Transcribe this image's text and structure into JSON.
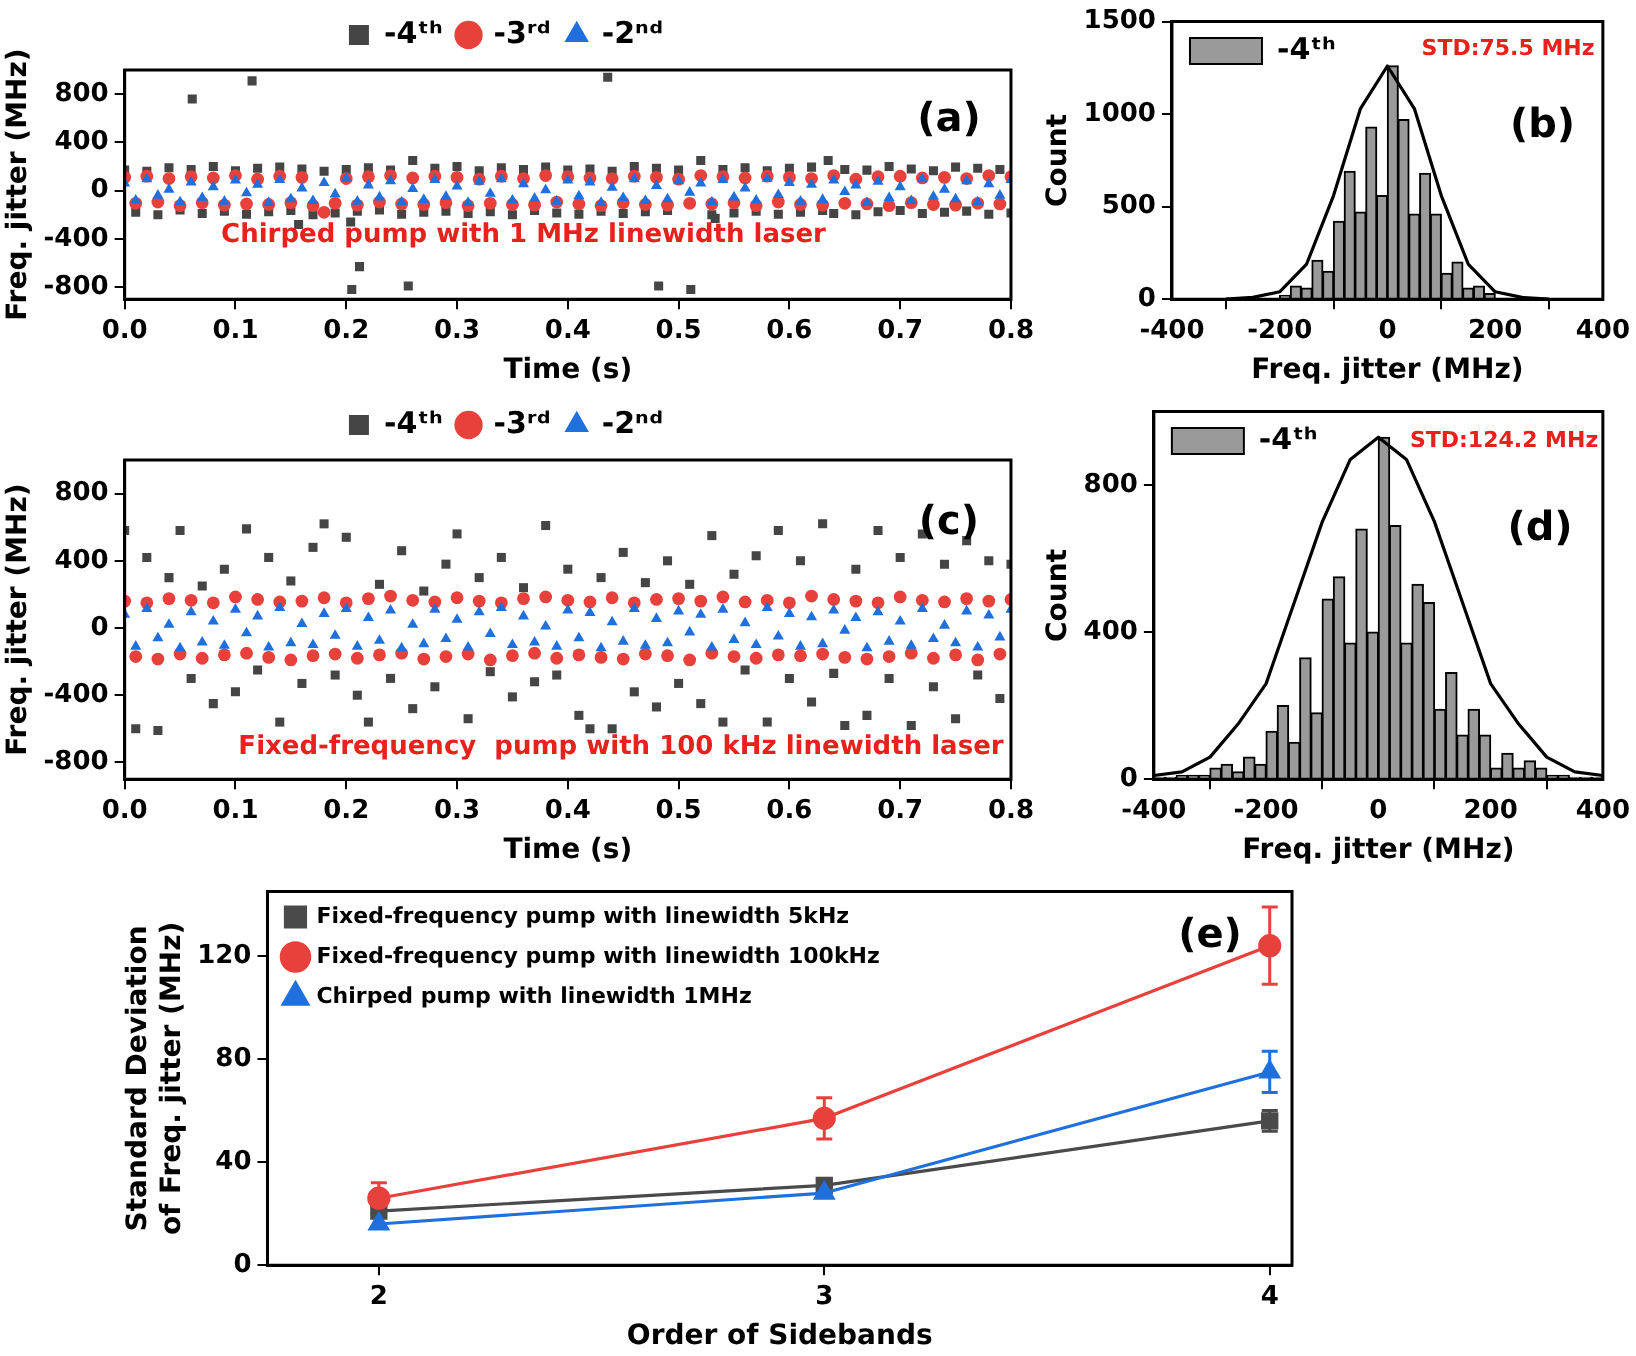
{
  "chart_data": [
    {
      "type": "scatter",
      "xlabel": "Time (s)",
      "ylabel": "Freq. jitter (MHz)",
      "legend": "top",
      "annotations": [
        "(a)",
        "Chirped pump with 1 MHz linewidth laser"
      ],
      "xlim": [
        0,
        0.8
      ],
      "xticks": [
        {
          "value": 0,
          "label": "0.0"
        },
        0.1,
        0.2,
        0.3,
        0.4,
        0.5,
        0.6,
        0.7,
        0.8
      ],
      "ylim": [
        -900,
        1000
      ],
      "yticks": [
        -800,
        -400,
        0,
        400,
        800
      ],
      "x": [
        0,
        0.01,
        0.02,
        0.03,
        0.04,
        0.05,
        0.06,
        0.07,
        0.08,
        0.09,
        0.1,
        0.11,
        0.12,
        0.13,
        0.14,
        0.15,
        0.16,
        0.17,
        0.18,
        0.19,
        0.2,
        0.21,
        0.22,
        0.23,
        0.24,
        0.25,
        0.26,
        0.27,
        0.28,
        0.29,
        0.3,
        0.31,
        0.32,
        0.33,
        0.34,
        0.35,
        0.36,
        0.37,
        0.38,
        0.39,
        0.4,
        0.41,
        0.42,
        0.43,
        0.44,
        0.45,
        0.46,
        0.47,
        0.48,
        0.49,
        0.5,
        0.51,
        0.52,
        0.53,
        0.54,
        0.55,
        0.56,
        0.57,
        0.58,
        0.59,
        0.6,
        0.61,
        0.62,
        0.63,
        0.64,
        0.65,
        0.66,
        0.67,
        0.68,
        0.69,
        0.7,
        0.71,
        0.72,
        0.73,
        0.74,
        0.75,
        0.76,
        0.77,
        0.78,
        0.79,
        0.8
      ],
      "series": [
        {
          "name": "-4ᵗʰ",
          "color": "#454545",
          "marker": "square",
          "x": [
            0,
            0.01,
            0.02,
            0.03,
            0.04,
            0.05,
            0.06,
            0.061,
            0.07,
            0.08,
            0.09,
            0.1,
            0.11,
            0.115,
            0.12,
            0.13,
            0.14,
            0.15,
            0.157,
            0.16,
            0.17,
            0.18,
            0.19,
            0.2,
            0.204,
            0.205,
            0.21,
            0.212,
            0.22,
            0.23,
            0.24,
            0.25,
            0.256,
            0.26,
            0.27,
            0.28,
            0.29,
            0.3,
            0.31,
            0.32,
            0.33,
            0.34,
            0.35,
            0.36,
            0.37,
            0.38,
            0.39,
            0.4,
            0.41,
            0.42,
            0.43,
            0.436,
            0.44,
            0.45,
            0.46,
            0.47,
            0.48,
            0.482,
            0.49,
            0.5,
            0.511,
            0.52,
            0.53,
            0.533,
            0.54,
            0.55,
            0.56,
            0.57,
            0.58,
            0.59,
            0.6,
            0.61,
            0.62,
            0.63,
            0.635,
            0.64,
            0.65,
            0.66,
            0.67,
            0.68,
            0.69,
            0.7,
            0.71,
            0.72,
            0.73,
            0.74,
            0.75,
            0.76,
            0.77,
            0.78,
            0.79,
            0.8
          ],
          "values": [
            170,
            -180,
            160,
            -200,
            190,
            -160,
            175,
            760,
            -190,
            200,
            -170,
            165,
            -195,
            910,
            185,
            -175,
            195,
            -165,
            -280,
            180,
            -200,
            160,
            -185,
            175,
            -260,
            -820,
            -170,
            -630,
            190,
            -160,
            170,
            -195,
            -790,
            250,
            -180,
            185,
            -170,
            200,
            -190,
            165,
            -175,
            190,
            -200,
            175,
            -165,
            195,
            -185,
            170,
            -195,
            180,
            -170,
            940,
            160,
            -190,
            200,
            -175,
            185,
            -790,
            -165,
            170,
            -820,
            250,
            -200,
            -230,
            175,
            -185,
            190,
            -170,
            165,
            -195,
            185,
            -180,
            195,
            -165,
            250,
            -190,
            175,
            -200,
            170,
            -175,
            200,
            -165,
            180,
            -190,
            165,
            -180,
            195,
            -170,
            185,
            -195,
            175,
            -185
          ]
        },
        {
          "name": "-3ʳᵈ",
          "color": "#e8413c",
          "marker": "circle",
          "values": [
            110,
            -105,
            120,
            -95,
            100,
            -125,
            115,
            -100,
            105,
            -120,
            125,
            -110,
            95,
            -115,
            120,
            -100,
            110,
            -125,
            -180,
            -105,
            100,
            -120,
            115,
            -95,
            125,
            -110,
            105,
            -115,
            120,
            -100,
            110,
            -125,
            95,
            -105,
            120,
            -115,
            100,
            -120,
            125,
            -95,
            115,
            -110,
            105,
            -125,
            100,
            -100,
            120,
            -115,
            110,
            -120,
            95,
            -105,
            125,
            -110,
            115,
            -100,
            105,
            -125,
            120,
            -95,
            110,
            -115,
            100,
            -120,
            125,
            -105,
            95,
            -110,
            115,
            -125,
            120,
            -100,
            105,
            -115,
            110,
            -120,
            100,
            -105,
            125,
            -110,
            115
          ]
        },
        {
          "name": "-2ⁿᵈ",
          "color": "#1f6fdc",
          "marker": "triangle",
          "values": [
            60,
            -80,
            95,
            -40,
            10,
            -95,
            70,
            -60,
            30,
            -90,
            85,
            -20,
            50,
            -100,
            90,
            -70,
            20,
            -85,
            65,
            -30,
            100,
            -90,
            45,
            -55,
            80,
            -95,
            15,
            -75,
            90,
            -50,
            35,
            -100,
            75,
            -25,
            95,
            -80,
            55,
            -65,
            5,
            -90,
            85,
            -45,
            70,
            -100,
            25,
            -60,
            95,
            -85,
            40,
            -70,
            80,
            -15,
            60,
            -95,
            90,
            -55,
            20,
            -80,
            100,
            -35,
            65,
            -90,
            50,
            -75,
            85,
            -10,
            45,
            -100,
            75,
            -60,
            30,
            -85,
            95,
            -50,
            10,
            -70,
            80,
            -95,
            55,
            -40,
            90
          ]
        }
      ]
    },
    {
      "type": "histogram",
      "xlabel": "Freq. jitter (MHz)",
      "ylabel": "Count",
      "legend": "top left",
      "annotations": [
        "STD:75.5 MHz",
        "(b)"
      ],
      "xlim": [
        -400,
        400
      ],
      "xticks": [
        -400,
        -200,
        0,
        200,
        400
      ],
      "ylim": [
        0,
        1500
      ],
      "yticks": [
        0,
        500,
        1000,
        1500
      ],
      "bins": [
        -200,
        -180,
        -160,
        -140,
        -120,
        -100,
        -80,
        -60,
        -40,
        -20,
        0,
        20,
        40,
        60,
        80,
        100,
        120,
        140,
        160,
        180,
        200
      ],
      "series": [
        {
          "name": "-4ᵗʰ",
          "color": "#9a9a9a",
          "values": [
            20,
            70,
            60,
            210,
            150,
            420,
            690,
            470,
            930,
            560,
            1260,
            970,
            460,
            680,
            460,
            140,
            200,
            60,
            70,
            30
          ]
        },
        {
          "type": "line",
          "color": "#000000",
          "x": [
            -300,
            -250,
            -200,
            -150,
            -100,
            -50,
            0,
            50,
            100,
            150,
            200,
            250,
            300
          ],
          "values": [
            0,
            10,
            40,
            190,
            560,
            1030,
            1260,
            1030,
            560,
            190,
            40,
            10,
            0
          ]
        }
      ]
    },
    {
      "type": "scatter",
      "xlabel": "Time (s)",
      "ylabel": "Freq. jitter (MHz)",
      "legend": "top",
      "annotations": [
        "(c)",
        "Fixed-frequency  pump with 100 kHz linewidth laser"
      ],
      "xlim": [
        0,
        0.8
      ],
      "xticks": [
        {
          "value": 0,
          "label": "0.0"
        },
        0.1,
        0.2,
        0.3,
        0.4,
        0.5,
        0.6,
        0.7,
        0.8
      ],
      "ylim": [
        -900,
        1000
      ],
      "yticks": [
        -800,
        -400,
        0,
        400,
        800
      ],
      "x": [
        0,
        0.01,
        0.02,
        0.03,
        0.04,
        0.05,
        0.06,
        0.07,
        0.08,
        0.09,
        0.1,
        0.11,
        0.12,
        0.13,
        0.14,
        0.15,
        0.16,
        0.17,
        0.18,
        0.19,
        0.2,
        0.21,
        0.22,
        0.23,
        0.24,
        0.25,
        0.26,
        0.27,
        0.28,
        0.29,
        0.3,
        0.31,
        0.32,
        0.33,
        0.34,
        0.35,
        0.36,
        0.37,
        0.38,
        0.39,
        0.4,
        0.41,
        0.42,
        0.43,
        0.44,
        0.45,
        0.46,
        0.47,
        0.48,
        0.49,
        0.5,
        0.51,
        0.52,
        0.53,
        0.54,
        0.55,
        0.56,
        0.57,
        0.58,
        0.59,
        0.6,
        0.61,
        0.62,
        0.63,
        0.64,
        0.65,
        0.66,
        0.67,
        0.68,
        0.69,
        0.7,
        0.71,
        0.72,
        0.73,
        0.74,
        0.75,
        0.76,
        0.77,
        0.78,
        0.79,
        0.8
      ],
      "series": [
        {
          "name": "-4ᵗʰ",
          "color": "#454545",
          "marker": "square",
          "values": [
            580,
            -600,
            420,
            -610,
            300,
            580,
            -300,
            250,
            -450,
            350,
            -380,
            590,
            -250,
            420,
            -560,
            280,
            -330,
            480,
            620,
            -280,
            540,
            -400,
            -560,
            260,
            -300,
            460,
            -480,
            220,
            -350,
            380,
            560,
            -540,
            300,
            -260,
            420,
            -410,
            240,
            -320,
            610,
            -280,
            350,
            -520,
            -600,
            300,
            -600,
            450,
            -380,
            270,
            -470,
            400,
            -330,
            260,
            -450,
            550,
            -560,
            320,
            -250,
            430,
            -560,
            580,
            -300,
            400,
            -440,
            620,
            -270,
            -580,
            350,
            -520,
            580,
            -300,
            420,
            -580,
            560,
            -350,
            380,
            -540,
            520,
            -280,
            400,
            -420,
            380
          ]
        },
        {
          "name": "-3ʳᵈ",
          "color": "#e8413c",
          "marker": "circle",
          "values": [
            160,
            -170,
            150,
            -185,
            175,
            -155,
            165,
            -180,
            150,
            -160,
            185,
            -150,
            170,
            -175,
            155,
            -190,
            160,
            -165,
            180,
            -155,
            150,
            -180,
            175,
            -160,
            190,
            -150,
            165,
            -185,
            155,
            -170,
            180,
            -155,
            160,
            -190,
            150,
            -165,
            175,
            -150,
            185,
            -180,
            165,
            -160,
            155,
            -175,
            180,
            -185,
            150,
            -155,
            170,
            -165,
            175,
            -190,
            160,
            -150,
            185,
            -170,
            155,
            -180,
            165,
            -160,
            150,
            -165,
            190,
            -155,
            170,
            -175,
            160,
            -185,
            150,
            -170,
            185,
            -150,
            165,
            -180,
            155,
            -160,
            175,
            -190,
            160,
            -155,
            170
          ]
        },
        {
          "name": "-2ⁿᵈ",
          "color": "#1f6fdc",
          "marker": "triangle",
          "values": [
            80,
            -110,
            115,
            -60,
            20,
            -120,
            95,
            -85,
            40,
            -105,
            110,
            -30,
            70,
            -115,
            120,
            -90,
            25,
            -100,
            85,
            -45,
            115,
            -110,
            60,
            -75,
            105,
            -120,
            20,
            -95,
            110,
            -65,
            50,
            -115,
            95,
            -35,
            120,
            -100,
            70,
            -85,
            10,
            -110,
            105,
            -60,
            90,
            -120,
            35,
            -80,
            115,
            -105,
            55,
            -90,
            100,
            -25,
            80,
            -115,
            110,
            -70,
            30,
            -100,
            120,
            -50,
            85,
            -110,
            65,
            -95,
            105,
            -15,
            60,
            -120,
            95,
            -80,
            40,
            -105,
            115,
            -65,
            15,
            -90,
            100,
            -115,
            75,
            -55,
            110
          ]
        }
      ]
    },
    {
      "type": "histogram",
      "xlabel": "Freq. jitter (MHz)",
      "ylabel": "Count",
      "legend": "top left",
      "annotations": [
        "STD:124.2 MHz",
        "(d)"
      ],
      "xlim": [
        -400,
        400
      ],
      "xticks": [
        -400,
        -200,
        0,
        200,
        400
      ],
      "ylim": [
        0,
        1000
      ],
      "yticks": [
        0,
        400,
        800
      ],
      "bins": [
        -400,
        -380,
        -360,
        -340,
        -320,
        -300,
        -280,
        -260,
        -240,
        -220,
        -200,
        -180,
        -160,
        -140,
        -120,
        -100,
        -80,
        -60,
        -40,
        -20,
        0,
        20,
        40,
        60,
        80,
        100,
        120,
        140,
        160,
        180,
        200,
        220,
        240,
        260,
        280,
        300,
        320,
        340,
        360,
        380,
        400
      ],
      "series": [
        {
          "name": "-4ᵗʰ",
          "color": "#9a9a9a",
          "values": [
            5,
            5,
            10,
            10,
            10,
            30,
            40,
            20,
            60,
            40,
            130,
            200,
            100,
            330,
            180,
            490,
            550,
            370,
            680,
            400,
            930,
            690,
            370,
            530,
            480,
            190,
            290,
            120,
            190,
            120,
            30,
            70,
            30,
            50,
            30,
            10,
            10,
            5,
            5,
            5
          ]
        },
        {
          "type": "line",
          "color": "#000000",
          "x": [
            -400,
            -350,
            -300,
            -250,
            -200,
            -150,
            -100,
            -50,
            0,
            50,
            100,
            150,
            200,
            250,
            300,
            350,
            400
          ],
          "values": [
            10,
            20,
            60,
            150,
            260,
            480,
            700,
            870,
            930,
            870,
            700,
            480,
            260,
            150,
            60,
            20,
            10
          ]
        }
      ]
    },
    {
      "type": "line",
      "xlabel": "Order of Sidebands",
      "ylabel": "Standard Deviation\nof Freq. jitter (MHz)",
      "legend": "top left",
      "annotations": [
        "(e)"
      ],
      "xlim": [
        1.75,
        4.05
      ],
      "xticks": [
        2,
        3,
        4
      ],
      "ylim": [
        0,
        145
      ],
      "yticks": [
        0,
        40,
        80,
        120
      ],
      "x": [
        2,
        3,
        4
      ],
      "series": [
        {
          "name": "Fixed-frequency pump with linewidth 5kHz",
          "color": "#4a4a4a",
          "marker": "square",
          "values": [
            21,
            31,
            56
          ],
          "errors": [
            null,
            null,
            4
          ]
        },
        {
          "name": "Fixed-frequency pump with linewidth 100kHz",
          "color": "#e8413c",
          "marker": "circle",
          "values": [
            26,
            57,
            124
          ],
          "errors": [
            6,
            8,
            15
          ]
        },
        {
          "name": "Chirped pump with linewidth 1MHz",
          "color": "#1f6fdc",
          "marker": "triangle",
          "values": [
            16,
            28,
            75
          ],
          "errors": [
            null,
            null,
            8
          ]
        }
      ]
    }
  ]
}
